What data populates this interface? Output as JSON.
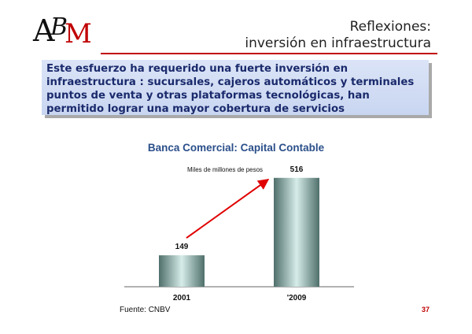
{
  "logo": {
    "text": "ABM"
  },
  "title": {
    "line1": "Reflexiones:",
    "line2": "inversión en infraestructura"
  },
  "callout": {
    "text": "Este esfuerzo ha requerido una fuerte inversión en infraestructura : sucursales, cajeros automáticos y terminales puntos de venta y otras plataformas tecnológicas, han permitido lograr una mayor cobertura de servicios"
  },
  "colors": {
    "accent": "#c00000",
    "callout_text": "#1a2a6c",
    "chart_title": "#2b4f8a",
    "bar": "#8fb1ad"
  },
  "chart_data": {
    "type": "bar",
    "title": "Banca Comercial: Capital Contable",
    "unit_label": "Miles de millones de pesos",
    "categories": [
      "2001",
      "'2009"
    ],
    "values": [
      149,
      516
    ],
    "data_labels": [
      "149",
      "516"
    ],
    "ylim": [
      0,
      560
    ],
    "grid": false,
    "legend": "none",
    "annotation": "red-arrow-increase"
  },
  "footer": {
    "source": "Fuente: CNBV",
    "page_number": "37"
  }
}
